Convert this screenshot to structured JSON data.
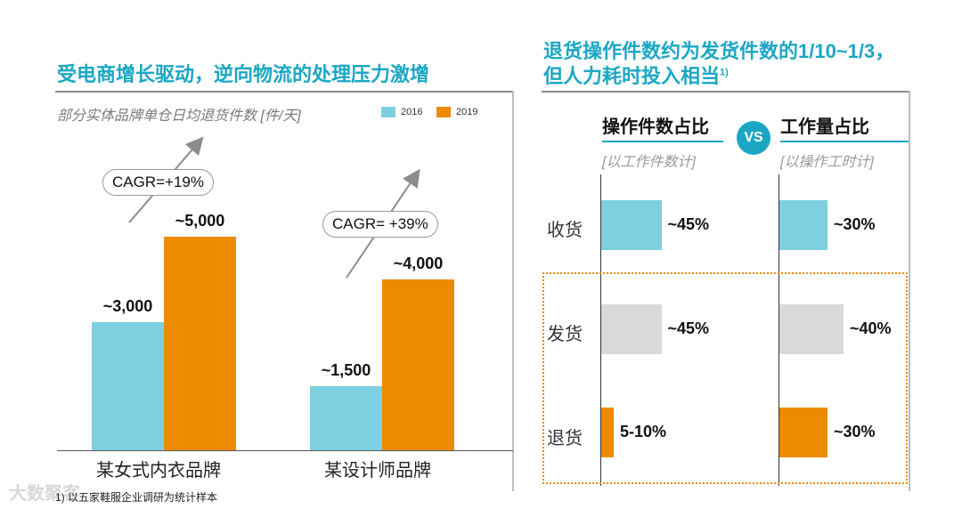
{
  "colors": {
    "teal": "#7ecfe0",
    "orange": "#ed8b00",
    "gray": "#d9d9d9",
    "title": "#1ba7c4"
  },
  "left": {
    "title": "受电商增长驱动，逆向物流的处理压力激增",
    "subtitle": "部分实体品牌单仓日均退货件数 [件/天]",
    "cagr": [
      "CAGR=+19%",
      "CAGR= +39%"
    ]
  },
  "right": {
    "title_line1": "退货操作件数约为发货件数的1/10~1/3，",
    "title_line2": "但人力耗时投入相当",
    "title_sup": "1)",
    "vs": "VS",
    "col1_title": "操作件数占比",
    "col1_sub": "[以工作件数计]",
    "col2_title": "工作量占比",
    "col2_sub": "[以操作工时计]"
  },
  "footnote": "1) 以五家鞋服企业调研为统计样本",
  "watermark": "大数聚客",
  "chart_data": [
    {
      "type": "bar",
      "title": "部分实体品牌单仓日均退货件数 [件/天]",
      "categories": [
        "某女式内衣品牌",
        "某设计师品牌"
      ],
      "series": [
        {
          "name": "2016",
          "values": [
            3000,
            1500
          ],
          "labels": [
            "~3,000",
            "~1,500"
          ],
          "color": "#7ecfe0"
        },
        {
          "name": "2019",
          "values": [
            5000,
            4000
          ],
          "labels": [
            "~5,000",
            "~4,000"
          ],
          "color": "#ed8b00"
        }
      ],
      "ylim": [
        0,
        5500
      ],
      "xlabel": "",
      "ylabel": ""
    },
    {
      "type": "bar",
      "orientation": "horizontal",
      "title": "操作件数占比",
      "categories": [
        "收货",
        "发货",
        "退货"
      ],
      "values": [
        45,
        45,
        7.5
      ],
      "labels": [
        "~45%",
        "~45%",
        "5-10%"
      ],
      "colors": [
        "#7ecfe0",
        "#d9d9d9",
        "#ed8b00"
      ],
      "xlim": [
        0,
        100
      ]
    },
    {
      "type": "bar",
      "orientation": "horizontal",
      "title": "工作量占比",
      "categories": [
        "收货",
        "发货",
        "退货"
      ],
      "values": [
        30,
        40,
        30
      ],
      "labels": [
        "~30%",
        "~40%",
        "~30%"
      ],
      "colors": [
        "#7ecfe0",
        "#d9d9d9",
        "#ed8b00"
      ],
      "xlim": [
        0,
        100
      ]
    }
  ]
}
